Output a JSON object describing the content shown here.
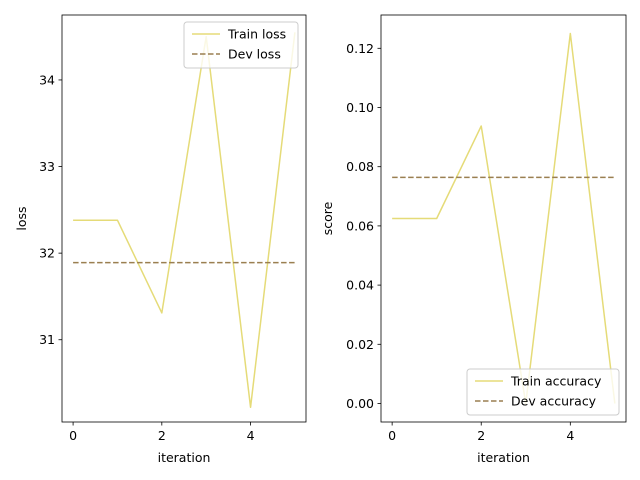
{
  "chart_data": [
    {
      "type": "line",
      "xlabel": "iteration",
      "ylabel": "loss",
      "xlim": [
        -0.25,
        5.25
      ],
      "ylim": [
        30.05,
        34.75
      ],
      "xticks": [
        0,
        2,
        4
      ],
      "xtick_labels": [
        "0",
        "2",
        "4"
      ],
      "yticks": [
        31,
        32,
        33,
        34
      ],
      "ytick_labels": [
        "31",
        "32",
        "33",
        "34"
      ],
      "legend_position": "top-right",
      "grid": false,
      "series": [
        {
          "name": "Train loss",
          "x": [
            0,
            1,
            2,
            3,
            4,
            5
          ],
          "values": [
            32.38,
            32.38,
            31.31,
            34.5,
            30.22,
            34.55
          ],
          "color": "#e5db78",
          "style": "solid"
        },
        {
          "name": "Dev loss",
          "x": [
            0,
            5
          ],
          "values": [
            31.89,
            31.89
          ],
          "color": "#9a7f50",
          "style": "dashed"
        }
      ]
    },
    {
      "type": "line",
      "xlabel": "iteration",
      "ylabel": "score",
      "xlim": [
        -0.25,
        5.25
      ],
      "ylim": [
        -0.00625,
        0.13125
      ],
      "xticks": [
        0,
        2,
        4
      ],
      "xtick_labels": [
        "0",
        "2",
        "4"
      ],
      "yticks": [
        0.0,
        0.02,
        0.04,
        0.06,
        0.08,
        0.1,
        0.12
      ],
      "ytick_labels": [
        "0.00",
        "0.02",
        "0.04",
        "0.06",
        "0.08",
        "0.10",
        "0.12"
      ],
      "legend_position": "bottom-right",
      "grid": false,
      "series": [
        {
          "name": "Train accuracy",
          "x": [
            0,
            1,
            2,
            3,
            4,
            5
          ],
          "values": [
            0.0625,
            0.0625,
            0.09375,
            0.0,
            0.125,
            0.0
          ],
          "color": "#e5db78",
          "style": "solid"
        },
        {
          "name": "Dev accuracy",
          "x": [
            0,
            5
          ],
          "values": [
            0.0764,
            0.0764
          ],
          "color": "#9a7f50",
          "style": "dashed"
        }
      ]
    }
  ]
}
